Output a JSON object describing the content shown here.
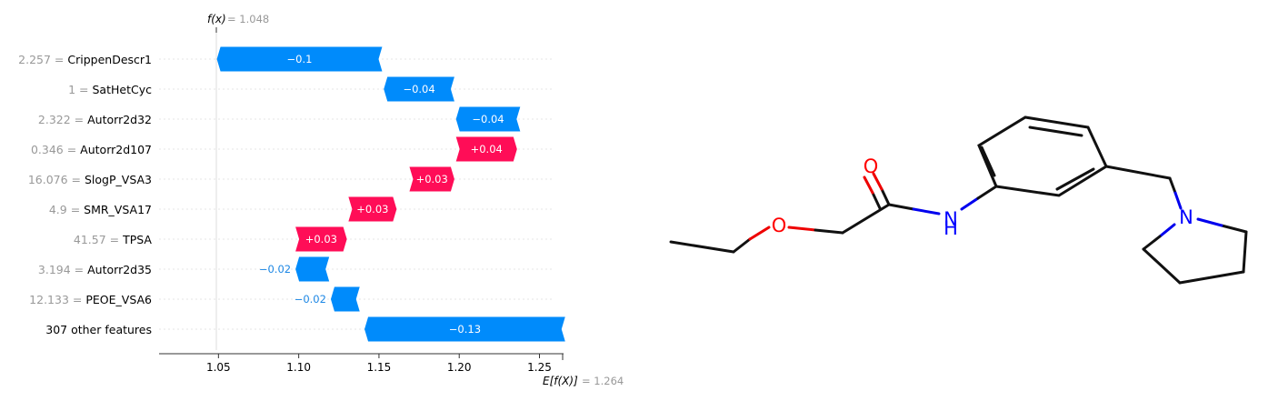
{
  "chart_data": {
    "type": "waterfall",
    "fx": {
      "label": "f(x)",
      "value": 1.048,
      "value_text": "= 1.048"
    },
    "base": {
      "label": "E[f(X)]",
      "value": 1.264,
      "value_text": "= 1.264"
    },
    "features": [
      {
        "value": "2.257",
        "name": "CrippenDescr1",
        "contribution": -0.1,
        "label": "−0.1"
      },
      {
        "value": "1",
        "name": "SatHetCyc",
        "contribution": -0.04,
        "label": "−0.04"
      },
      {
        "value": "2.322",
        "name": "Autorr2d32",
        "contribution": -0.04,
        "label": "−0.04"
      },
      {
        "value": "0.346",
        "name": "Autorr2d107",
        "contribution": 0.04,
        "label": "+0.04"
      },
      {
        "value": "16.076",
        "name": "SlogP_VSA3",
        "contribution": 0.03,
        "label": "+0.03"
      },
      {
        "value": "4.9",
        "name": "SMR_VSA17",
        "contribution": 0.03,
        "label": "+0.03"
      },
      {
        "value": "41.57",
        "name": "TPSA",
        "contribution": 0.03,
        "label": "+0.03"
      },
      {
        "value": "3.194",
        "name": "Autorr2d35",
        "contribution": -0.02,
        "label": "−0.02"
      },
      {
        "value": "12.133",
        "name": "PEOE_VSA6",
        "contribution": -0.02,
        "label": "−0.02"
      },
      {
        "value": "",
        "name": "307 other features",
        "contribution": -0.13,
        "label": "−0.13"
      }
    ],
    "bar_segments": [
      [
        1.049,
        1.152
      ],
      [
        1.153,
        1.197
      ],
      [
        1.198,
        1.238
      ],
      [
        1.198,
        1.236
      ],
      [
        1.169,
        1.197
      ],
      [
        1.131,
        1.161
      ],
      [
        1.098,
        1.13
      ],
      [
        1.098,
        1.119
      ],
      [
        1.12,
        1.138
      ],
      [
        1.141,
        1.266
      ]
    ],
    "xlim": [
      1.013,
      1.265
    ],
    "xticks": [
      "1.05",
      "1.10",
      "1.15",
      "1.20",
      "1.25"
    ],
    "colors": {
      "positive": "#ff0d57",
      "negative": "#1e88e5",
      "negative_bar": "#008bfb"
    }
  },
  "molecule": {
    "atoms": [
      {
        "symbol": "O",
        "color": "#ff0000"
      },
      {
        "symbol": "O",
        "color": "#ff0000"
      },
      {
        "symbol": "N",
        "color": "#0000ff",
        "extra": "H"
      },
      {
        "symbol": "N",
        "color": "#0000ff"
      }
    ]
  }
}
